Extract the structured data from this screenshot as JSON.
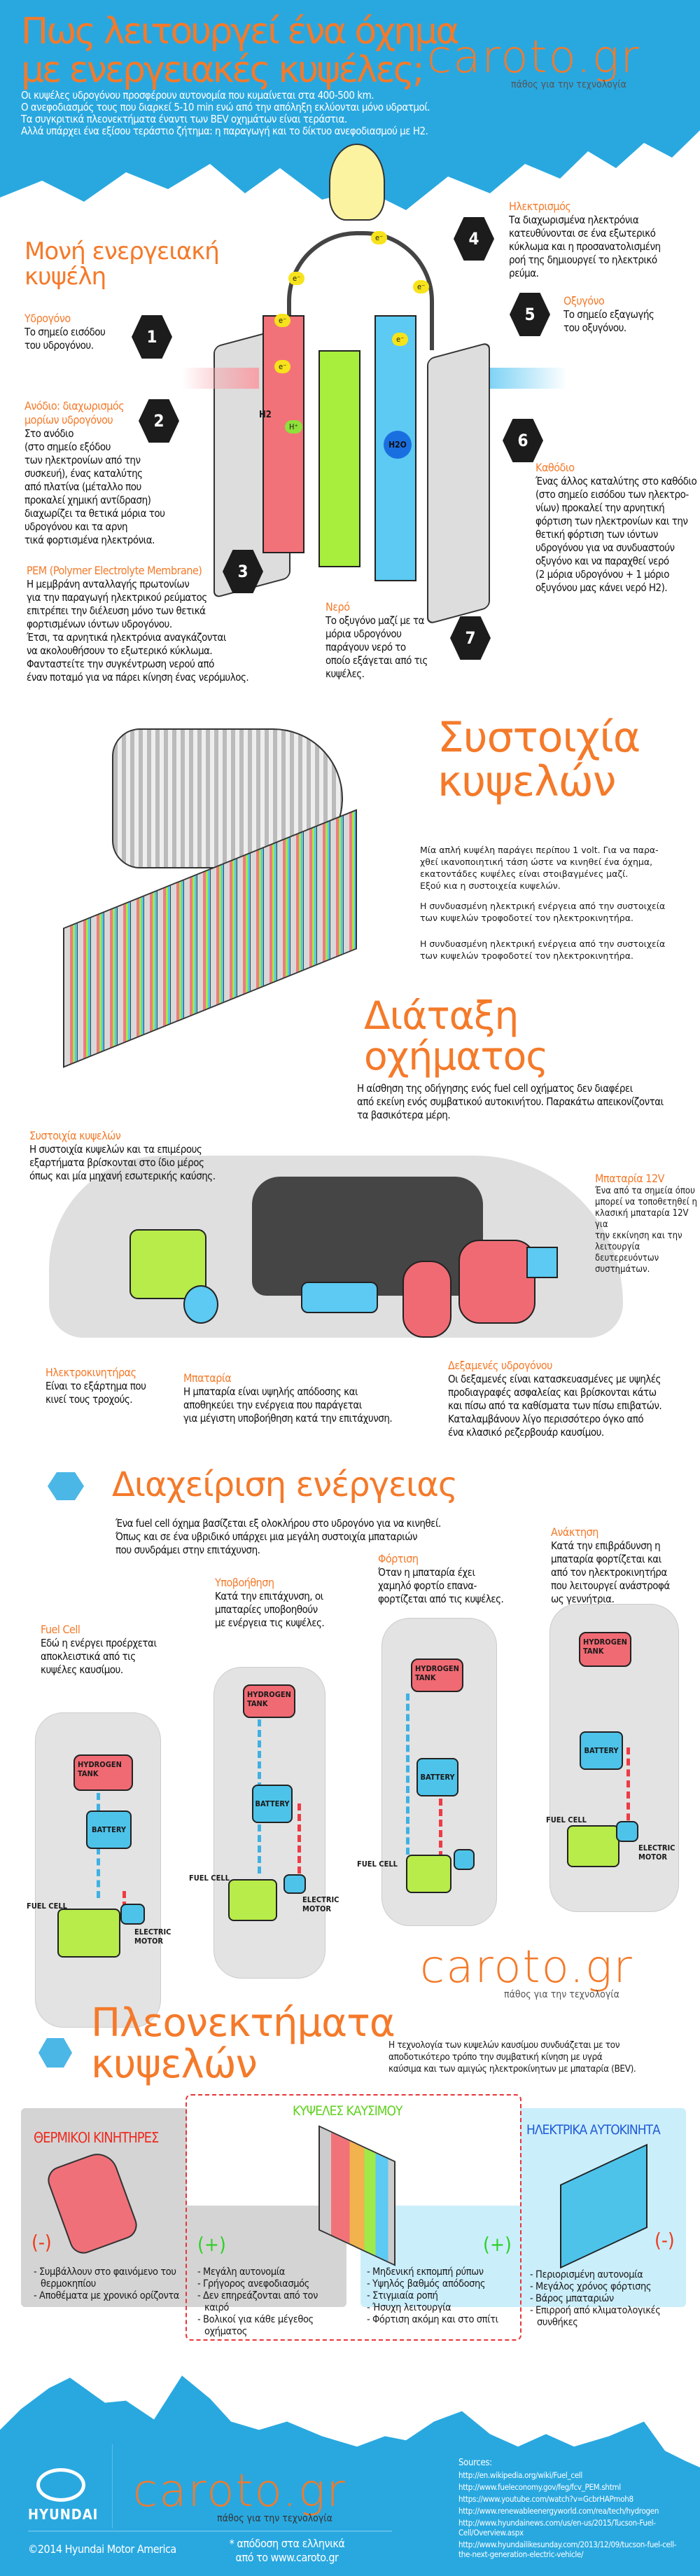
{
  "header": {
    "title_line1": "Πως λειτουργεί ένα όχημα",
    "title_line2": "με ενεργειακές κυψέλες;",
    "intro": [
      "Οι κυψέλες υδρογόνου προσφέρουν αυτονομία που κυμαίνεται στα 400-500 km.",
      "Ο ανεφοδιασμός τους που διαρκεί 5-10 min ενώ από την απόληξη εκλύονται μόνο υδρατμοί.",
      "Τα συγκριτικά πλεονεκτήματα έναντι των BEV οχημάτων είναι τεράστια.",
      "Αλλά υπάρχει ένα εξίσου τεράστιο ζήτημα: η παραγωγή και το δίκτυο ανεφοδιασμού με H2."
    ]
  },
  "brand": {
    "logo_text": "caroto.gr",
    "tagline": "πάθος για την τεχνολογία"
  },
  "colors": {
    "orange": "#f47a2a",
    "blue": "#29a8e0",
    "green": "#5fd11e",
    "red": "#ee3b2a",
    "electric_blue": "#1e5bd8"
  },
  "single_cell": {
    "title_line1": "Μονή ενεργειακή",
    "title_line2": "κυψέλη",
    "electron": "e⁻",
    "proton": "H⁺",
    "h2_label": "H2",
    "h2o_label": "H2O",
    "callouts": [
      {
        "num": "1",
        "title": "Υδρογόνο",
        "text": [
          "Το σημείο εισόδου",
          "του υδρογόνου."
        ]
      },
      {
        "num": "2",
        "title": "Ανόδιο: διαχωρισμός μορίων υδρογόνου",
        "text": [
          "Στο ανόδιο",
          "(στο σημείο εξόδου",
          "των ηλεκτρονίων από την",
          "συσκευή), ένας καταλύτης",
          "από πλατίνα (μέταλλο που",
          "προκαλεί χημική αντίδραση)",
          "διαχωρίζει τα θετικά μόρια του",
          "υδρογόνου και τα αρνη",
          "τικά φορτισμένα ηλεκτρόνια."
        ]
      },
      {
        "num": "3",
        "title": "PEM (Polymer Electrolyte Membrane)",
        "text": [
          "Η μεμβράνη ανταλλαγής πρωτονίων",
          "για την παραγωγή ηλεκτρικού ρεύματος",
          "επιτρέπει την διέλευση μόνο των θετικά",
          "φορτισμένων ιόντων υδρογόνου.",
          "Έτσι, τα αρνητικά ηλεκτρόνια αναγκάζονται",
          "να ακολουθήσουν το εξωτερικό κύκλωμα.",
          "Φανταστείτε την συγκέντρωση νερού από",
          "έναν ποταμό για να πάρει κίνηση ένας νερόμυλος."
        ]
      },
      {
        "num": "4",
        "title": "Ηλεκτρισμός",
        "text": [
          "Τα διαχωρισμένα ηλεκτρόνια",
          "κατευθύνονται σε ένα εξωτερικό",
          "κύκλωμα και η προσανατολισμένη",
          "ροή της δημιουργεί το ηλεκτρικό",
          "ρεύμα."
        ]
      },
      {
        "num": "5",
        "title": "Οξυγόνο",
        "text": [
          "Το σημείο εξαγωγής",
          "του οξυγόνου."
        ]
      },
      {
        "num": "6",
        "title": "Καθόδιο",
        "text": [
          "Ένας άλλος καταλύτης στο καθόδιο",
          "(στο σημείο εισόδου των ηλεκτρο-",
          "νίων) προκαλεί την αρνητική",
          "φόρτιση των ηλεκτρονίων και την",
          "θετική φόρτιση των ιόντων",
          "υδρογόνου για να συνδυαστούν",
          "οξυγόνο και να παραχθεί νερό",
          "(2 μόρια υδρογόνου + 1 μόριο",
          "οξυγόνου μας κάνει νερό H2)."
        ]
      },
      {
        "num": "7",
        "title": "Νερό",
        "text": [
          "Το οξυγόνο μαζί με τα",
          "μόρια υδρογόνου",
          "παράγουν νερό το",
          "οποίο εξάγεται από τις",
          "κυψέλες."
        ]
      }
    ]
  },
  "stack": {
    "title_line1": "Συστοιχία",
    "title_line2": "κυψελών",
    "paragraphs": [
      [
        "Μία απλή κυψέλη παράγει περίπου 1 volt. Για να παρα-",
        "χθεί ικανοποιητική τάση ώστε να κινηθεί ένα όχημα,",
        "εκατοντάδες κυψέλες είναι στοιβαγμένες μαζί.",
        "Εξού κια η συστοιχεία κυψελών."
      ],
      [
        "Η συνδυασμένη ηλεκτρική ενέργεια από την συστοιχεία",
        "των κυψελών τροφοδοτεί τον ηλεκτροκινητήρα."
      ],
      [
        "Η συνδυασμένη ηλεκτρική ενέργεια από την συστοιχεία",
        "των κυψελών τροφοδοτεί τον ηλεκτροκινητήρα."
      ]
    ]
  },
  "layout_section": {
    "title_line1": "Διάταξη",
    "title_line2": "οχήματος",
    "intro": [
      "Η αίσθηση της οδήγησης ενός fuel cell οχήματος δεν διαφέρει",
      "από εκείνη ενός συμβατικού αυτοκινήτου. Παρακάτω απεικονίζονται",
      "τα βασικότερα μέρη."
    ],
    "parts": [
      {
        "title": "Συστοιχία κυψελών",
        "text": [
          "Η συστοιχία κυψελών και τα επιμέρους",
          "εξαρτήματα βρίσκονται στο ίδιο μέρος",
          "όπως και μία μηχανή εσωτερικής καύσης."
        ]
      },
      {
        "title": "Μπαταρία 12V",
        "text": [
          "Ένα από τα σημεία όπου",
          "μπορεί να τοποθετηθεί η",
          "κλασική μπαταρία 12V για",
          "την εκκίνηση και την",
          "λειτουργία δευτερευόντων",
          "συστημάτων."
        ]
      },
      {
        "title": "Ηλεκτροκινητήρας",
        "text": [
          "Είναι το εξάρτημα που",
          "κινεί τους τροχούς."
        ]
      },
      {
        "title": "Μπαταρία",
        "text": [
          "Η μπαταρία είναι υψηλής απόδοσης και",
          "αποθηκεύει την ενέργεια που παράγεται",
          "για μέγιστη υποβοήθηση κατά την επιτάχυνση."
        ]
      },
      {
        "title": "Δεξαμενές υδρογόνου",
        "text": [
          "Οι δεξαμενές είναι κατασκευασμένες με υψηλές",
          "προδιαγραφές ασφαλείας και βρίσκονται κάτω",
          "και πίσω από τα καθίσματα των πίσω επιβατών.",
          "Καταλαμβάνουν λίγο περισσότερο όγκο από",
          "ένα κλασικό ρεζερβουάρ καυσίμου."
        ]
      }
    ]
  },
  "energy": {
    "title": "Διαχείριση ενέργειας",
    "intro": [
      "Ένα fuel cell όχημα βασίζεται εξ ολοκλήρου στο υδρογόνο για να κινηθεί.",
      "Όπως και σε ένα υβριδικό υπάρχει μια μεγάλη συστοιχία μπαταριών",
      "που συνδράμει στην επιτάχυνση."
    ],
    "modes": [
      {
        "title": "Fuel Cell",
        "text": [
          "Εδώ η ενέργει προέρχεται",
          "αποκλειστικά από τις",
          "κυψέλες καυσίμου."
        ]
      },
      {
        "title": "Υποβοήθηση",
        "text": [
          "Κατά την επιτάχυνση, οι",
          "μπαταρίες υποβοηθούν",
          "με ενέργεια τις κυψέλες."
        ]
      },
      {
        "title": "Φόρτιση",
        "text": [
          "Όταν η μπαταρία έχει",
          "χαμηλό φορτίο επανα-",
          "φορτίζεται από τις κυψέλες."
        ]
      },
      {
        "title": "Ανάκτηση",
        "text": [
          "Κατά την επιβράδυνση η",
          "μπαταρία φορτίζεται  και",
          "από τον ηλεκτροκινητήρα",
          "που λειτουργεί ανάστροφά",
          "ως γεννήτρια."
        ]
      }
    ],
    "diagram_labels": {
      "tank_1": "HYDROGEN",
      "tank_2": "TANK",
      "battery": "BATTERY",
      "fuel_cell": "FUEL CELL",
      "motor_1": "ELECTRIC",
      "motor_2": "MOTOR"
    }
  },
  "advantages": {
    "title_line1": "Πλεονεκτήματα",
    "title_line2": "κυψελών",
    "intro": [
      "Η τεχνολογία των κυψελών καυσίμου συνδυάζεται με τον",
      "αποδοτικότερο τρόπο την συμβατική κίνηση με υγρά",
      "καύσιμα και των αμιγώς ηλεκτροκίνητων με μπαταρία (BEV)."
    ],
    "thermal": {
      "title": "ΘΕΡΜΙΚΟΙ ΚΙΝΗΤΗΡΕΣ",
      "sign": "(-)",
      "items": [
        "- Συμβάλλουν στο φαινόμενο του θερμοκηπίου",
        "- Αποθέματα με χρονικό ορίζοντα"
      ]
    },
    "fuel_cells": {
      "title": "ΚΥΨΕΛΕΣ ΚΑΥΣΙΜΟΥ",
      "sign_left": "(+)",
      "sign_right": "(+)",
      "items_left": [
        "- Μεγάλη αυτονομία",
        "- Γρήγορος ανεφοδιασμός",
        "- Δεν επηρεάζονται από τον καιρό",
        "- Βολικοί για κάθε μέγεθος οχήματος"
      ],
      "items_right": [
        "- Μηδενική εκπομπή ρύπων",
        "- Υψηλός βαθμός απόδοσης",
        "- Στιγμιαία ροπή",
        "- Ήσυχη λειτουργία",
        "- Φόρτιση ακόμη και στο σπίτι"
      ]
    },
    "electric": {
      "title": "ΗΛΕΚΤΡΙΚΑ ΑΥΤΟΚΙΝΗΤΑ",
      "sign": "(-)",
      "items": [
        "- Περιορισμένη αυτονομία",
        "- Μεγάλος χρόνος φόρτισης",
        "- Βάρος μπαταριών",
        "- Επιρροή από κλιματολογικές συνθήκες"
      ]
    }
  },
  "footer": {
    "hyundai": "HYUNDAI",
    "copyright": "©2014 Hyundai Motor America",
    "credit_line1": "* απόδοση στα ελληνικά",
    "credit_line2": "από το www.caroto.gr",
    "sources_title": "Sources:",
    "sources": [
      "http://en.wikipedia.org/wiki/Fuel_cell",
      "http://www.fueleconomy.gov/feg/fcv_PEM.shtml",
      "https://www.youtube.com/watch?v=GcbrHAPmoh8",
      "http://www.renewableenergyworld.com/rea/tech/hydrogen",
      "http://www.hyundainews.com/us/en-us/2015/Tucson-Fuel-Cell/Overview.aspx",
      "http://www.hyundailikesunday.com/2013/12/09/tucson-fuel-cell-the-next-generation-electric-vehicle/"
    ]
  }
}
